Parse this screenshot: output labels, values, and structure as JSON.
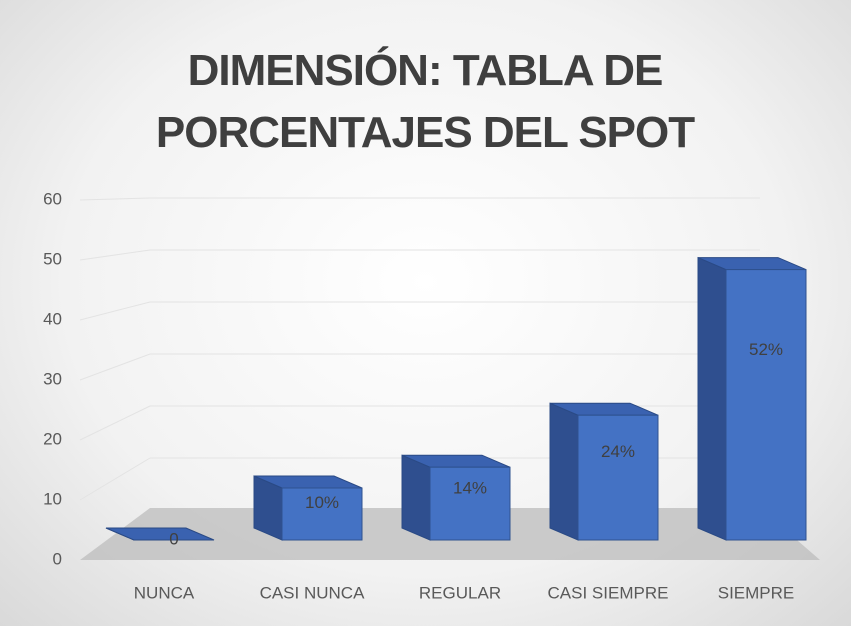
{
  "chart_data": {
    "type": "bar3d",
    "title": "DIMENSIÓN: TABLA DE PORCENTAJES DEL SPOT",
    "categories": [
      "NUNCA",
      "CASI NUNCA",
      "REGULAR",
      "CASI SIEMPRE",
      "SIEMPRE"
    ],
    "values": [
      0,
      10,
      14,
      24,
      52
    ],
    "value_labels": [
      "0",
      "10%",
      "14%",
      "24%",
      "52%"
    ],
    "color": "#4472c4",
    "ylim": [
      0,
      60
    ],
    "yticks": [
      0,
      10,
      20,
      30,
      40,
      50,
      60
    ],
    "grid": true
  }
}
